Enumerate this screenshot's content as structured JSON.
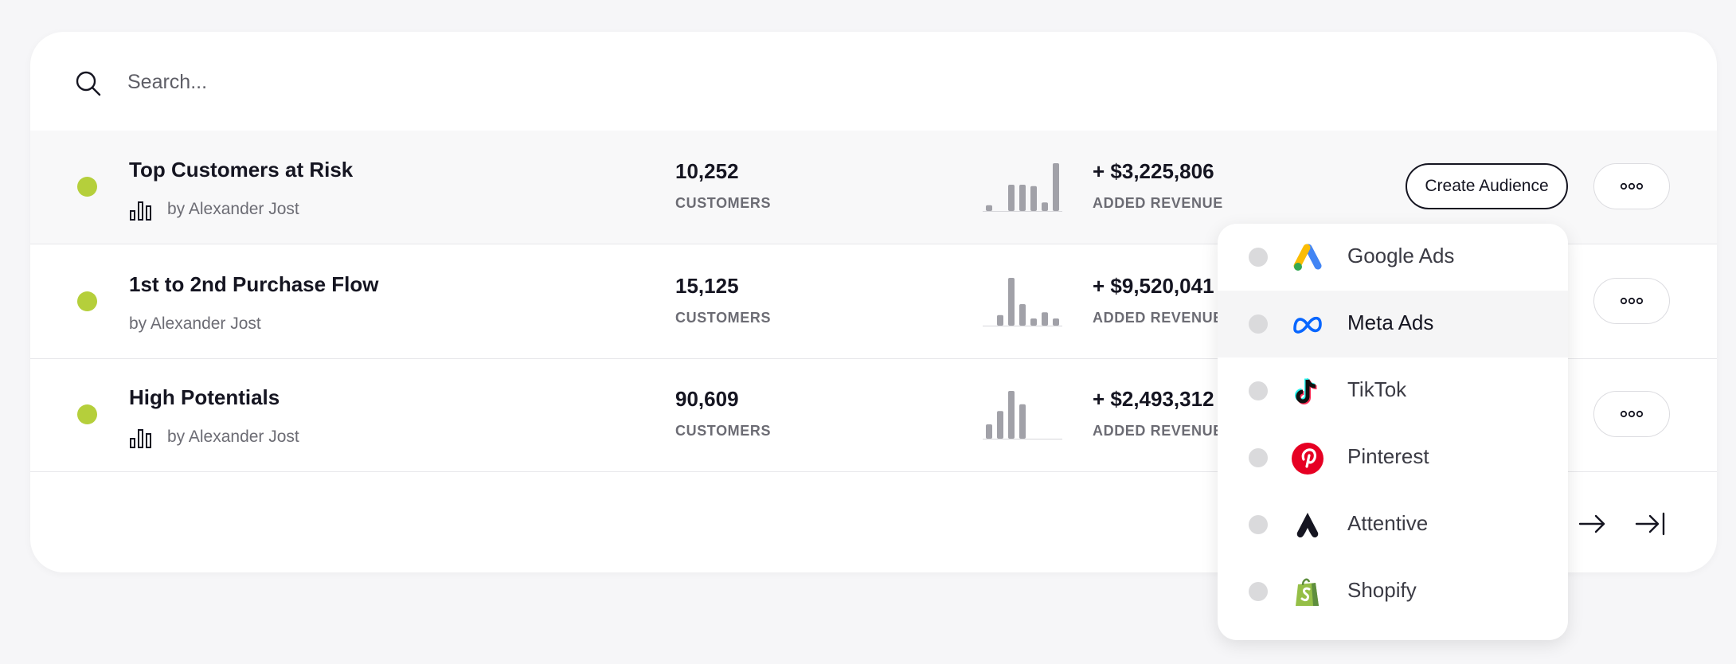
{
  "search": {
    "placeholder": "Search..."
  },
  "rows": [
    {
      "title": "Top Customers at Risk",
      "author": "by Alexander Jost",
      "customers": "10,252",
      "customers_label": "CUSTOMERS",
      "revenue": "+ $3,225,806",
      "revenue_label": "ADDED REVENUE",
      "spark": [
        0.12,
        0,
        0.55,
        0.55,
        0.52,
        0.18,
        1.0
      ]
    },
    {
      "title": "1st to 2nd Purchase Flow",
      "author": "by Alexander Jost",
      "customers": "15,125",
      "customers_label": "CUSTOMERS",
      "revenue": "+ $9,520,041",
      "revenue_label": "ADDED REVENUE",
      "spark": [
        0,
        0.22,
        1.0,
        0.45,
        0.15,
        0.28,
        0.15
      ]
    },
    {
      "title": "High Potentials",
      "author": "by Alexander Jost",
      "customers": "90,609",
      "customers_label": "CUSTOMERS",
      "revenue": "+ $2,493,312",
      "revenue_label": "ADDED REVENUE",
      "spark": [
        0.3,
        0.58,
        1.0,
        0.72,
        0,
        0,
        0
      ]
    }
  ],
  "actions": {
    "create_audience": "Create Audience"
  },
  "menu": {
    "items": [
      {
        "label": "Google Ads",
        "icon": "google-ads-icon"
      },
      {
        "label": "Meta Ads",
        "icon": "meta-icon"
      },
      {
        "label": "TikTok",
        "icon": "tiktok-icon"
      },
      {
        "label": "Pinterest",
        "icon": "pinterest-icon"
      },
      {
        "label": "Attentive",
        "icon": "attentive-icon"
      },
      {
        "label": "Shopify",
        "icon": "shopify-icon"
      }
    ]
  },
  "colors": {
    "status_green": "#b5cf3b",
    "spark_bar": "#a1a1a8",
    "accent_meta": "#0866ff",
    "accent_pinterest": "#e60023"
  }
}
